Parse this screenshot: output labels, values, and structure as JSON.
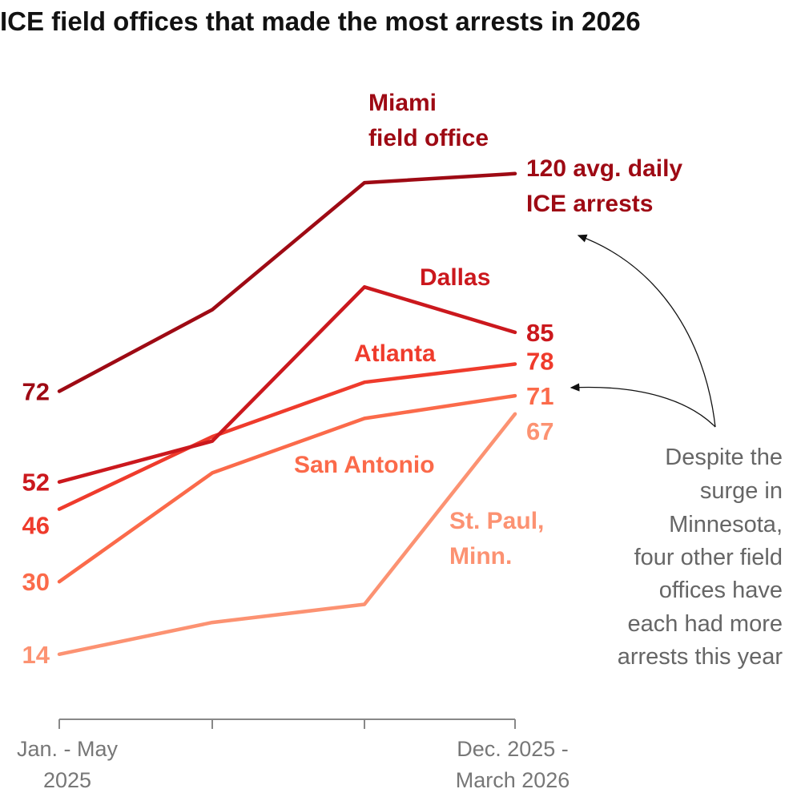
{
  "chart_data": {
    "type": "line",
    "title": "ICE field offices that made the most arrests in 2026",
    "x_tick_labels": [
      [
        "Jan. - May",
        "2025"
      ],
      [
        "Dec. 2025 -",
        "March 2026"
      ]
    ],
    "x_periods": 4,
    "ylim": [
      0,
      125
    ],
    "grid": false,
    "series": [
      {
        "name": "Miami field office",
        "label_lines": [
          "Miami",
          "field office"
        ],
        "end_label_lines": [
          "120 avg. daily",
          "ICE arrests"
        ],
        "values": [
          72,
          90,
          118,
          120
        ],
        "color": "#9e0a14"
      },
      {
        "name": "Dallas",
        "label_lines": [
          "Dallas"
        ],
        "values": [
          52,
          61,
          95,
          85
        ],
        "color": "#cb181d"
      },
      {
        "name": "Atlanta",
        "label_lines": [
          "Atlanta"
        ],
        "values": [
          46,
          62,
          74,
          78
        ],
        "color": "#ef3b2c"
      },
      {
        "name": "San Antonio",
        "label_lines": [
          "San Antonio"
        ],
        "values": [
          30,
          54,
          66,
          71
        ],
        "color": "#fb6a4a"
      },
      {
        "name": "St. Paul, Minn.",
        "label_lines": [
          "St. Paul,",
          "Minn."
        ],
        "values": [
          14,
          21,
          25,
          67
        ],
        "color": "#fc9272"
      }
    ],
    "annotation": [
      "Despite the",
      "surge in",
      "Minnesota,",
      "four other field",
      "offices have",
      "each had more",
      "arrests this year"
    ]
  }
}
